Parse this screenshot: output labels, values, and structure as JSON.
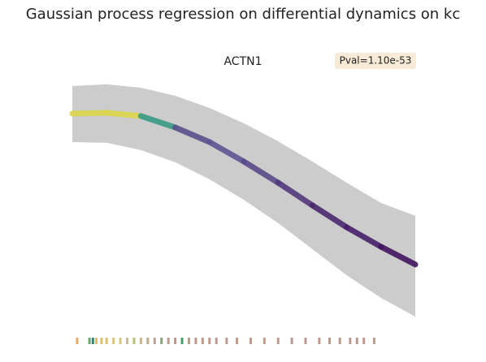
{
  "chart_data": {
    "type": "line",
    "title": "Gaussian process regression on differential dynamics on kc",
    "subtitle": "ACTN1",
    "annotation": "Pval=1.10e-53",
    "xlim": [
      0,
      1
    ],
    "ylim": [
      0,
      1
    ],
    "x": [
      0,
      0.1,
      0.2,
      0.3,
      0.4,
      0.5,
      0.6,
      0.7,
      0.8,
      0.9,
      1.0
    ],
    "series": [
      {
        "values": [
          0.867,
          0.87,
          0.857,
          0.81,
          0.75,
          0.67,
          0.583,
          0.49,
          0.4,
          0.32,
          0.247
        ],
        "point_colors": [
          "#dcd64a",
          "#dcd64a",
          "#3a9a86",
          "#5b4f8a",
          "#5e5594",
          "#5a4a8a",
          "#533a7c",
          "#4a2a6e",
          "#46206a",
          "#42165f",
          "#42165f"
        ]
      }
    ],
    "band": {
      "color": "#cccccc",
      "upper": [
        0.98,
        0.987,
        0.973,
        0.94,
        0.89,
        0.827,
        0.753,
        0.67,
        0.583,
        0.5,
        0.447
      ],
      "lower": [
        0.75,
        0.747,
        0.717,
        0.667,
        0.597,
        0.513,
        0.417,
        0.31,
        0.203,
        0.11,
        0.033
      ]
    },
    "rug": {
      "x": [
        0.014,
        0.05,
        0.06,
        0.07,
        0.085,
        0.1,
        0.12,
        0.14,
        0.16,
        0.18,
        0.2,
        0.22,
        0.24,
        0.26,
        0.28,
        0.3,
        0.32,
        0.34,
        0.36,
        0.38,
        0.4,
        0.42,
        0.45,
        0.48,
        0.52,
        0.56,
        0.6,
        0.64,
        0.68,
        0.72,
        0.75,
        0.78,
        0.81,
        0.83,
        0.85,
        0.88
      ],
      "colors": [
        "#f0a858",
        "#6aa86a",
        "#2e8a6e",
        "#e0c070",
        "#e0c070",
        "#e0c070",
        "#dcc47a",
        "#d8c680",
        "#c8c47a",
        "#b8c07a",
        "#c8b890",
        "#bca890",
        "#c0a090",
        "#8aa47a",
        "#bc9a8e",
        "#bc9a8e",
        "#4a9a72",
        "#bc9a8e",
        "#bc9a8e",
        "#bc9a8e",
        "#bc9a8e",
        "#bc9a8e",
        "#bc9a8e",
        "#bc9a8e",
        "#bc9a8e",
        "#bc9a8e",
        "#bc9a8e",
        "#bc9a8e",
        "#bc9a8e",
        "#bc9a8e",
        "#bc9a8e",
        "#bc9a8e",
        "#bc9a8e",
        "#bc9a8e",
        "#bc9a8e",
        "#bc9a8e"
      ]
    }
  }
}
